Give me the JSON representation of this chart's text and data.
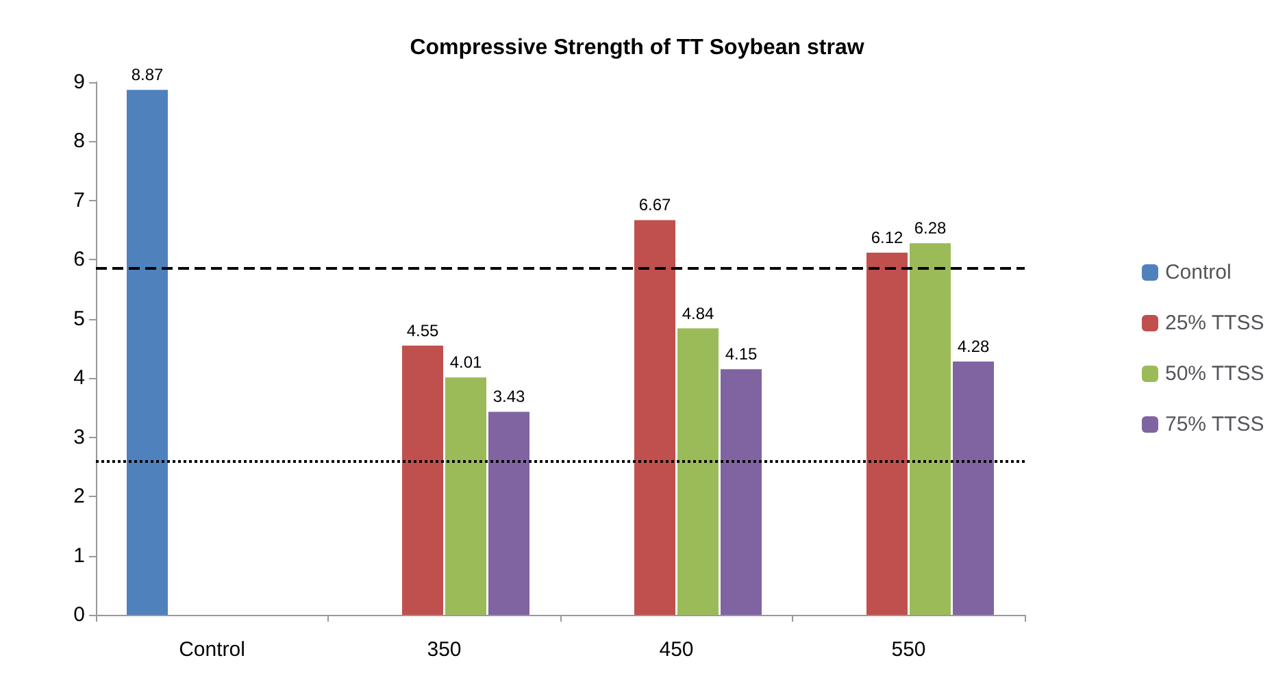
{
  "chart_data": {
    "type": "bar",
    "title": "Compressive Strength of TT Soybean straw",
    "categories": [
      "Control",
      "350",
      "450",
      "550"
    ],
    "series": [
      {
        "name": "Control",
        "color": "#4f81bd",
        "values": [
          8.87,
          null,
          null,
          null
        ]
      },
      {
        "name": "25% TTSS",
        "color": "#c0504d",
        "values": [
          null,
          4.55,
          6.67,
          6.12
        ]
      },
      {
        "name": "50% TTSS",
        "color": "#9bbb59",
        "values": [
          null,
          4.01,
          4.84,
          6.28
        ]
      },
      {
        "name": "75% TTSS",
        "color": "#8064a2",
        "values": [
          null,
          3.43,
          4.15,
          4.28
        ]
      }
    ],
    "ylim": [
      0,
      9
    ],
    "yticks": [
      0,
      1,
      2,
      3,
      4,
      5,
      6,
      7,
      8,
      9
    ],
    "grid": false,
    "legend": "right",
    "data_labels": true,
    "ref_lines": [
      {
        "axis": "y",
        "value": 5.85,
        "line_style": "dashed",
        "color": "#000000"
      },
      {
        "axis": "y",
        "value": 2.6,
        "line_style": "dotted",
        "color": "#000000"
      }
    ]
  }
}
